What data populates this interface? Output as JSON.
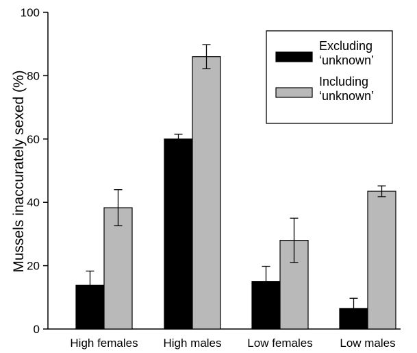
{
  "chart_data": {
    "type": "bar",
    "title": "",
    "xlabel": "",
    "ylabel": "Mussels inaccurately sexed (%)",
    "ylim": [
      0,
      100
    ],
    "yticks": [
      0,
      20,
      40,
      60,
      80,
      100
    ],
    "grid": false,
    "legend_position": "top-right",
    "categories": [
      "High females",
      "High males",
      "Low females",
      "Low males"
    ],
    "series": [
      {
        "name_lines": [
          "Excluding",
          "‘unknown’"
        ],
        "color": "#000000",
        "values": [
          13.8,
          60,
          15,
          6.5
        ],
        "errors": [
          4.5,
          1.5,
          4.8,
          3.2
        ]
      },
      {
        "name_lines": [
          "Including",
          "‘unknown’"
        ],
        "color": "#b9b9b9",
        "values": [
          38.3,
          86,
          28,
          43.5
        ],
        "errors": [
          5.7,
          3.8,
          7,
          1.7
        ]
      }
    ]
  }
}
